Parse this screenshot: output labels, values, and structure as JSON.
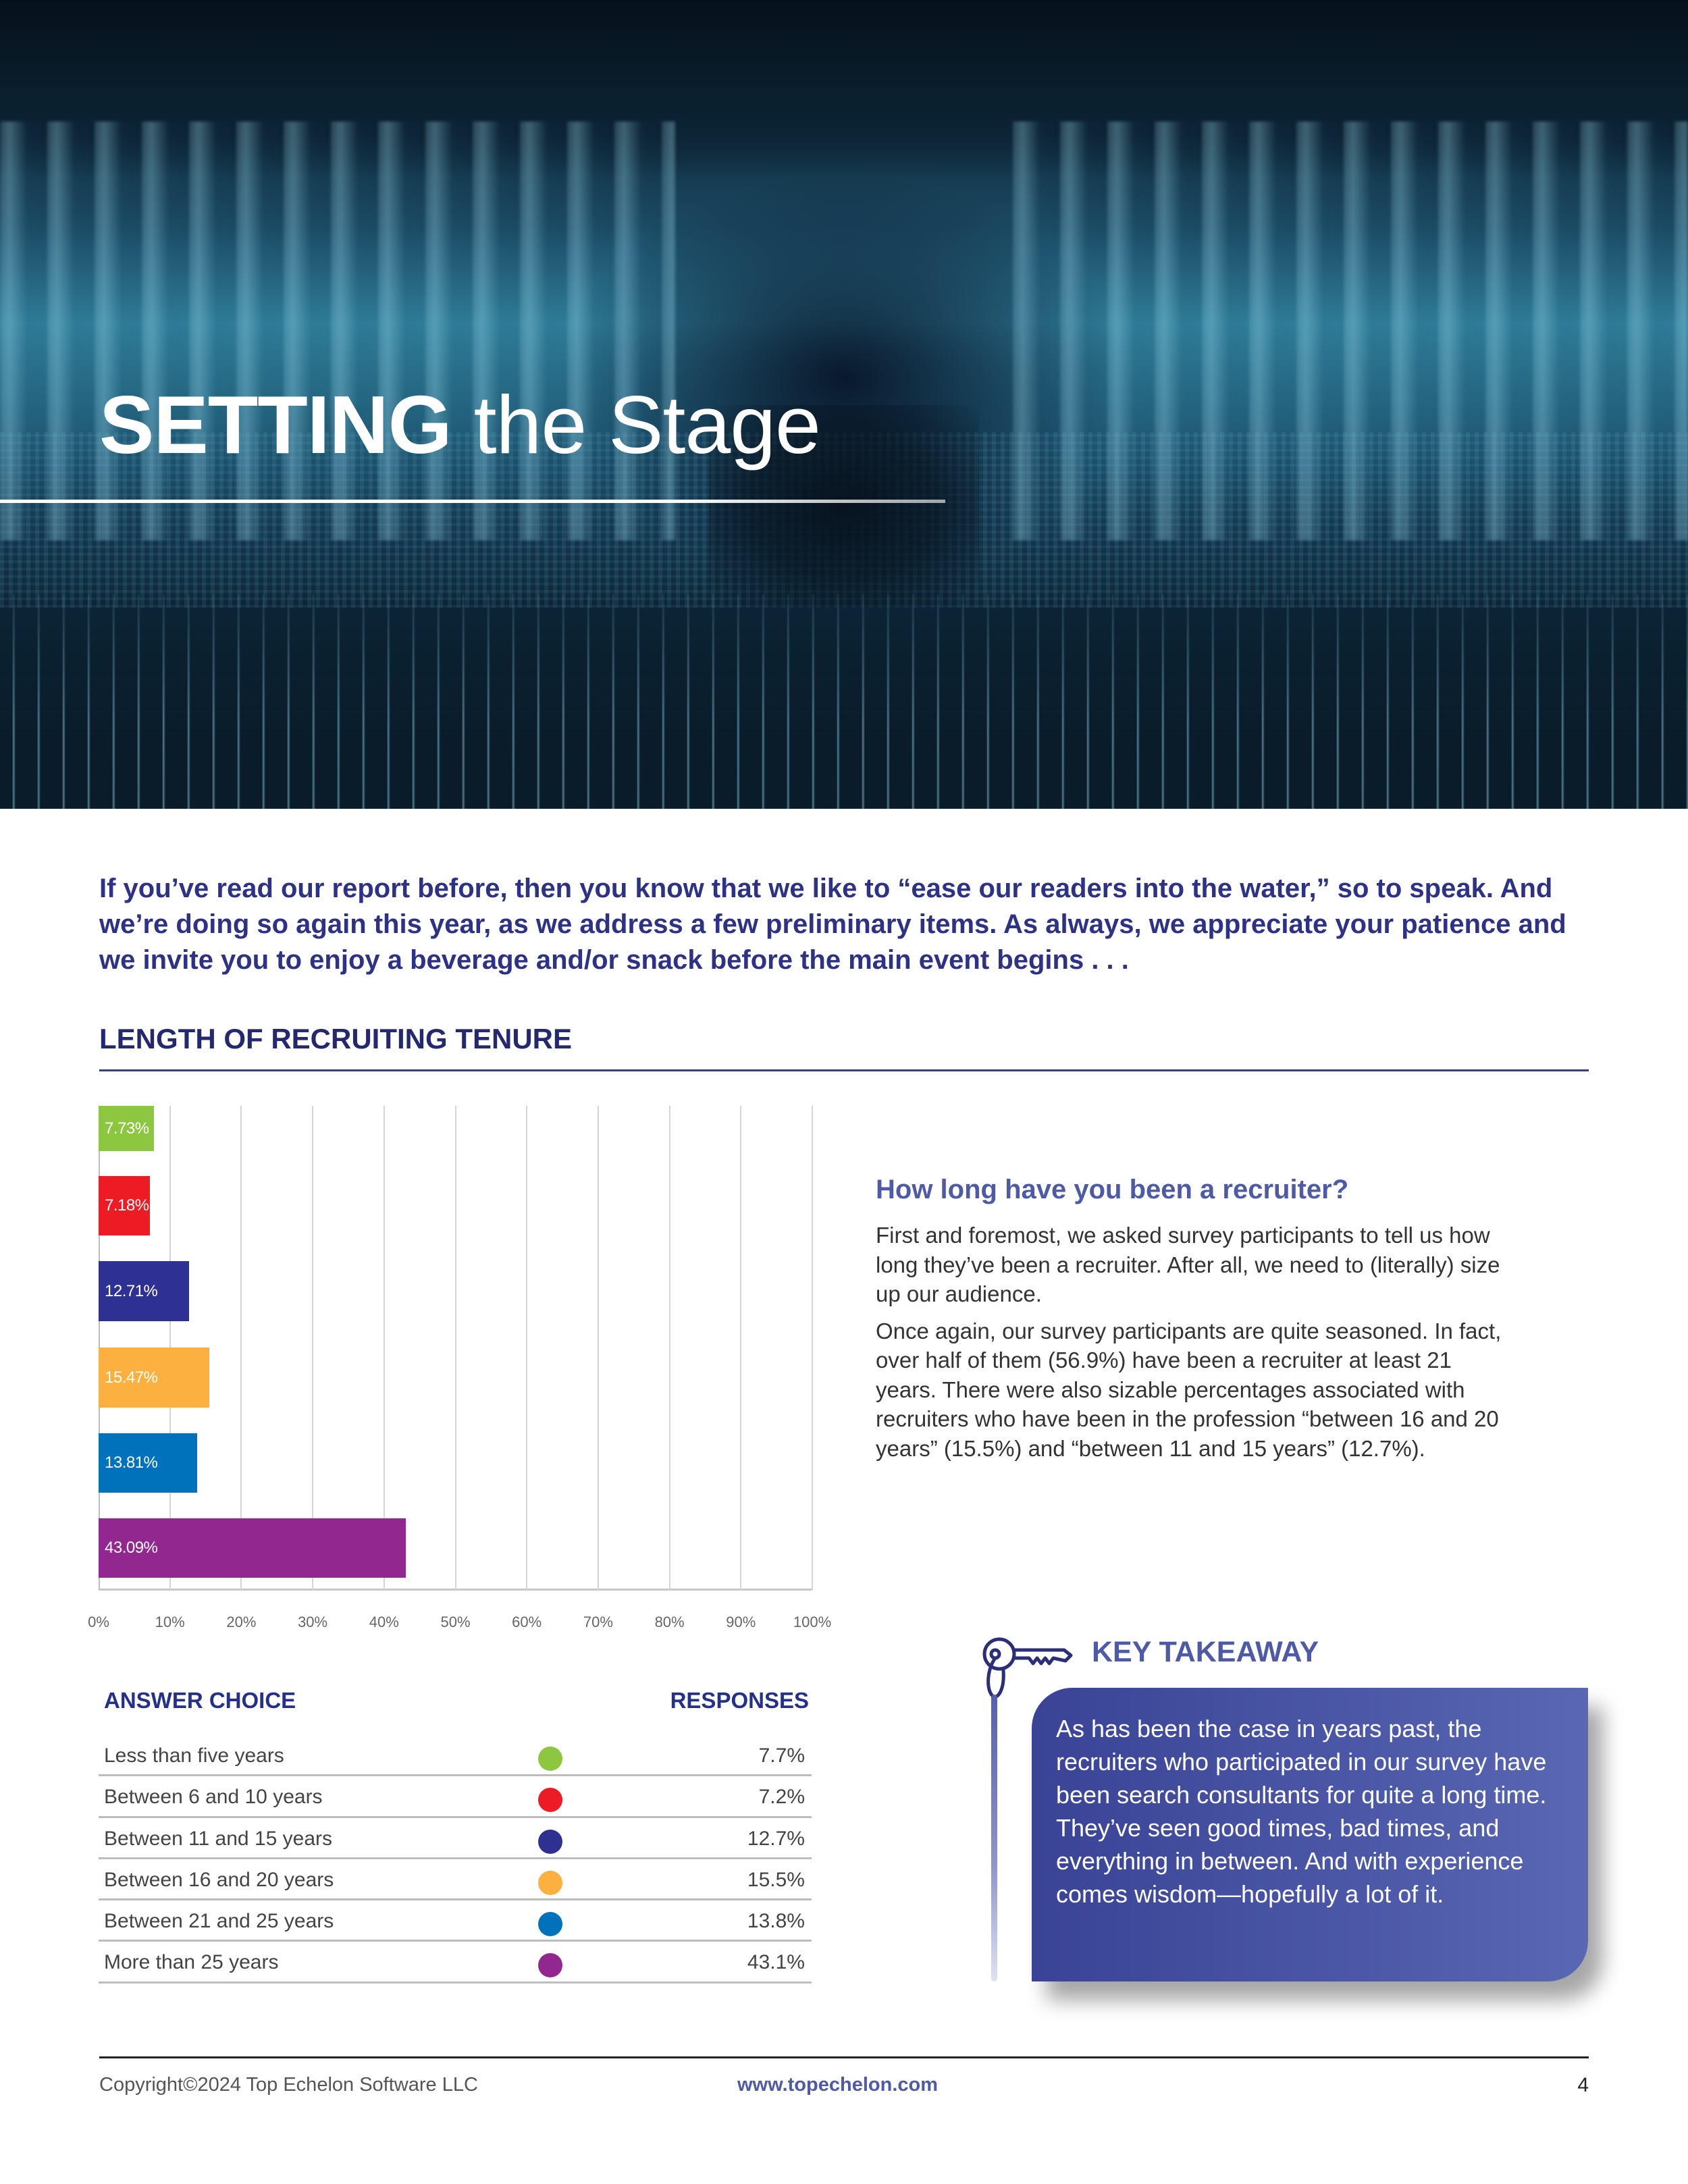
{
  "hero": {
    "title_bold": "SETTING",
    "title_light": "the Stage"
  },
  "intro": "If you’ve read our report before, then you know that we like to “ease our readers into the water,” so to speak. And we’re doing so again this year, as we address a few preliminary items. As always, we appreciate your patience and we invite you to enjoy a beverage and/or snack before the main event begins . . .",
  "section": {
    "heading": "LENGTH OF RECRUITING TENURE"
  },
  "chart_data": {
    "type": "bar",
    "orientation": "horizontal",
    "title": "LENGTH OF RECRUITING TENURE",
    "categories": [
      "Less than five years",
      "Between 6 and 10 years",
      "Between 11 and 15 years",
      "Between 16 and 20 years",
      "Between 21 and 25 years",
      "More than 25 years"
    ],
    "values": [
      7.73,
      7.18,
      12.71,
      15.47,
      13.81,
      43.09
    ],
    "labels": [
      "7.73%",
      "7.18%",
      "12.71%",
      "15.47%",
      "13.81%",
      "43.09%"
    ],
    "colors": [
      "#8dc63f",
      "#ed1c24",
      "#2e3192",
      "#fbb040",
      "#0072bc",
      "#92278f"
    ],
    "xlabel": "",
    "ylabel": "",
    "xlim": [
      0,
      100
    ],
    "xticks": [
      "0%",
      "10%",
      "20%",
      "30%",
      "40%",
      "50%",
      "60%",
      "70%",
      "80%",
      "90%",
      "100%"
    ],
    "grid": true,
    "legend": "none"
  },
  "question": {
    "heading": "How long have you been a recruiter?",
    "paragraphs": [
      "First and foremost, we asked survey participants to tell us how long they’ve been a recruiter. After all, we need to (literally) size up our audience.",
      "Once again, our survey participants are quite seasoned. In fact, over half of them (56.9%) have been a recruiter at least 21 years. There were also sizable percentages associated with recruiters who have been in the profession “between 16 and 20 years” (15.5%) and “between 11 and 15 years” (12.7%)."
    ]
  },
  "table": {
    "header_answer": "ANSWER CHOICE",
    "header_responses": "RESPONSES",
    "rows": [
      {
        "label": "Less than five years",
        "value": "7.7%",
        "color": "#8dc63f"
      },
      {
        "label": "Between 6 and 10 years",
        "value": "7.2%",
        "color": "#ed1c24"
      },
      {
        "label": "Between 11 and 15 years",
        "value": "12.7%",
        "color": "#2e3192"
      },
      {
        "label": "Between 16 and 20 years",
        "value": "15.5%",
        "color": "#fbb040"
      },
      {
        "label": "Between 21 and 25 years",
        "value": "13.8%",
        "color": "#0072bc"
      },
      {
        "label": "More than 25 years",
        "value": "43.1%",
        "color": "#92278f"
      }
    ]
  },
  "key_takeaway": {
    "icon": "key-icon",
    "heading": "KEY TAKEAWAY",
    "text": "As has been the case in years past, the recruiters who participated in our survey have been search consultants for quite a long time. They’ve seen good times, bad times, and everything in between. And with experience comes wisdom—hopefully a lot of it."
  },
  "footer": {
    "copyright": "Copyright©2024 Top Echelon Software LLC",
    "url": "www.topechelon.com",
    "page_number": "4"
  },
  "colors": {
    "brand_navy": "#2e3287",
    "accent_periwinkle": "#4e5aa6"
  }
}
